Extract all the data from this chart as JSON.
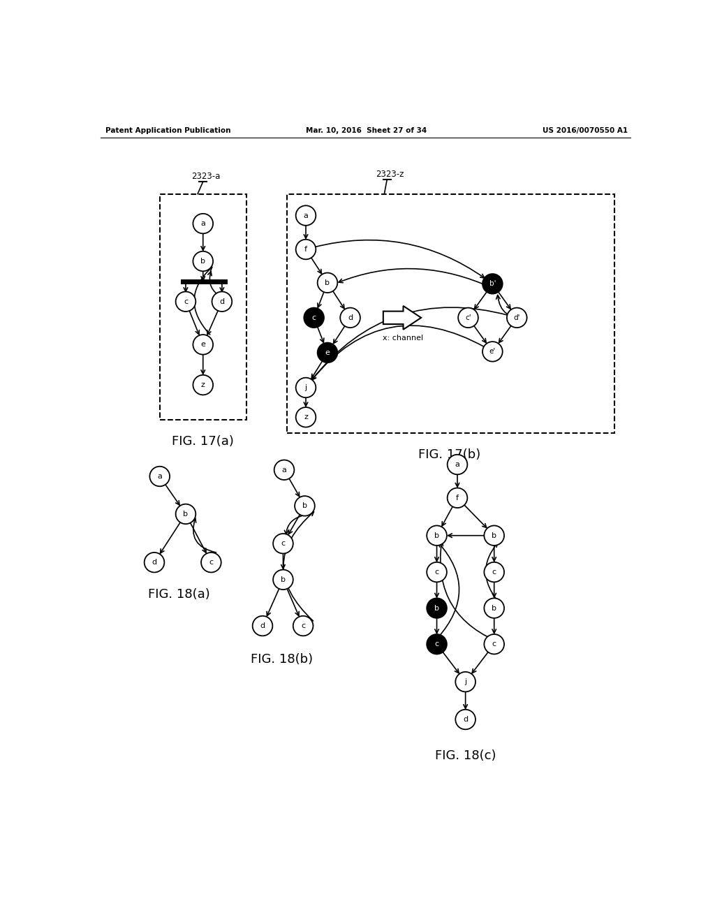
{
  "header_left": "Patent Application Publication",
  "header_mid": "Mar. 10, 2016  Sheet 27 of 34",
  "header_right": "US 2016/0070550 A1",
  "background": "#ffffff",
  "fig17a_label": "2323-a",
  "fig17b_label": "2323-z",
  "fig17a_caption": "FIG. 17(a)",
  "fig17b_caption": "FIG. 17(b)",
  "fig18a_caption": "FIG. 18(a)",
  "fig18b_caption": "FIG. 18(b)",
  "fig18c_caption": "FIG. 18(c)"
}
